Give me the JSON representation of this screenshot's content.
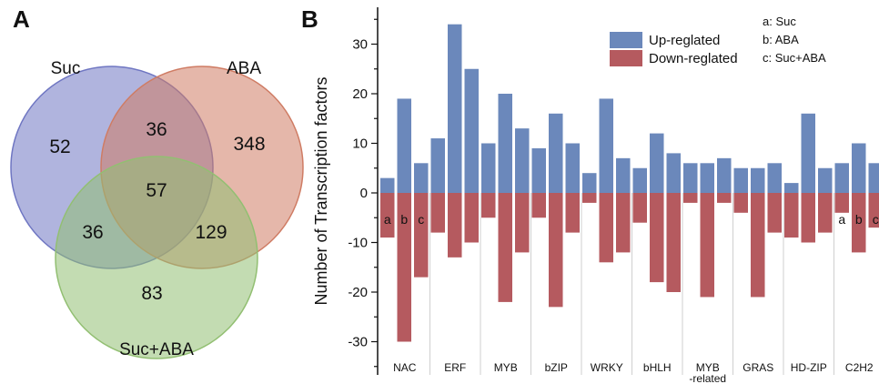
{
  "panel_a": {
    "label": "A",
    "sets": [
      "Suc",
      "ABA",
      "Suc+ABA"
    ],
    "colors": {
      "suc": "#6f76c2",
      "aba": "#cf7c64",
      "sucaba": "#92bf72"
    },
    "regions": [
      {
        "name": "Suc only",
        "value": "52"
      },
      {
        "name": "Suc ∩ ABA",
        "value": "36"
      },
      {
        "name": "ABA only",
        "value": "348"
      },
      {
        "name": "Suc ∩ ABA ∩ Suc+ABA",
        "value": "57"
      },
      {
        "name": "Suc ∩ Suc+ABA",
        "value": "36"
      },
      {
        "name": "ABA ∩ Suc+ABA",
        "value": "129"
      },
      {
        "name": "Suc+ABA only",
        "value": "83"
      }
    ]
  },
  "panel_b": {
    "label": "B",
    "legend": [
      "Up-reglated",
      "Down-reglated"
    ],
    "colors": {
      "up": "#6b88bb",
      "down": "#b55a5f"
    },
    "notes": [
      "a: Suc",
      "b: ABA",
      "c: Suc+ABA"
    ],
    "bar_tags": [
      "a",
      "b",
      "c"
    ]
  },
  "chart_data": {
    "type": "bar",
    "ylabel": "Number of Transcription factors",
    "ylim": [
      -35,
      37
    ],
    "yticks": [
      -30,
      -20,
      -10,
      0,
      10,
      20,
      30
    ],
    "categories": [
      "NAC",
      "ERF",
      "MYB",
      "bZIP",
      "WRKY",
      "bHLH",
      "MYB-related",
      "GRAS",
      "HD-ZIP",
      "C2H2"
    ],
    "category_display": [
      [
        "NAC"
      ],
      [
        "ERF"
      ],
      [
        "MYB"
      ],
      [
        "bZIP"
      ],
      [
        "WRKY"
      ],
      [
        "bHLH"
      ],
      [
        "MYB",
        "-related"
      ],
      [
        "GRAS"
      ],
      [
        "HD-ZIP"
      ],
      [
        "C2H2"
      ]
    ],
    "conditions": [
      "a",
      "b",
      "c"
    ],
    "series": [
      {
        "name": "Up-reglated",
        "values": [
          [
            3,
            19,
            6
          ],
          [
            11,
            34,
            25
          ],
          [
            10,
            20,
            13
          ],
          [
            9,
            16,
            10
          ],
          [
            4,
            19,
            7
          ],
          [
            5,
            12,
            8
          ],
          [
            6,
            6,
            7
          ],
          [
            5,
            5,
            6
          ],
          [
            2,
            16,
            5
          ],
          [
            6,
            10,
            6
          ]
        ]
      },
      {
        "name": "Down-reglated",
        "values": [
          [
            -9,
            -30,
            -17
          ],
          [
            -8,
            -13,
            -10
          ],
          [
            -5,
            -22,
            -12
          ],
          [
            -5,
            -23,
            -8
          ],
          [
            -2,
            -14,
            -12
          ],
          [
            -6,
            -18,
            -20
          ],
          [
            -2,
            -21,
            -2
          ],
          [
            -4,
            -21,
            -8
          ],
          [
            -9,
            -10,
            -8
          ],
          [
            -4,
            -12,
            -7
          ]
        ]
      }
    ],
    "tagged_categories": [
      "NAC",
      "C2H2"
    ]
  }
}
